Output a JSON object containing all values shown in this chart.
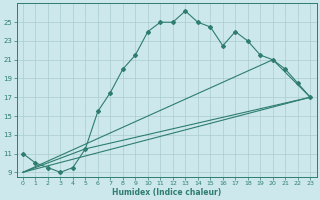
{
  "xlabel": "Humidex (Indice chaleur)",
  "ylabel": "",
  "background_color": "#cce8ed",
  "grid_color": "#aacccc",
  "line_color": "#2e7d6e",
  "xlim": [
    -0.5,
    23.5
  ],
  "ylim": [
    8.5,
    27
  ],
  "yticks": [
    9,
    11,
    13,
    15,
    17,
    19,
    21,
    23,
    25
  ],
  "xticks": [
    0,
    1,
    2,
    3,
    4,
    5,
    6,
    7,
    8,
    9,
    10,
    11,
    12,
    13,
    14,
    15,
    16,
    17,
    18,
    19,
    20,
    21,
    22,
    23
  ],
  "line1_x": [
    0,
    1,
    2,
    3,
    4,
    5,
    6,
    7,
    8,
    9,
    10,
    11,
    12,
    13,
    14,
    15,
    16,
    17,
    18,
    19,
    20,
    21,
    22,
    23
  ],
  "line1_y": [
    11,
    10,
    9.5,
    9,
    9.5,
    11.5,
    15.5,
    17.5,
    20,
    21.5,
    24,
    25,
    25,
    26.2,
    25,
    24.5,
    22.5,
    24,
    23,
    21.5,
    21,
    20,
    18.5,
    17
  ],
  "line2_x": [
    0,
    23
  ],
  "line2_y": [
    9,
    17
  ],
  "line3_x": [
    0,
    5,
    23
  ],
  "line3_y": [
    9,
    11.5,
    17
  ],
  "line4_x": [
    0,
    20,
    23
  ],
  "line4_y": [
    9,
    21,
    17
  ]
}
